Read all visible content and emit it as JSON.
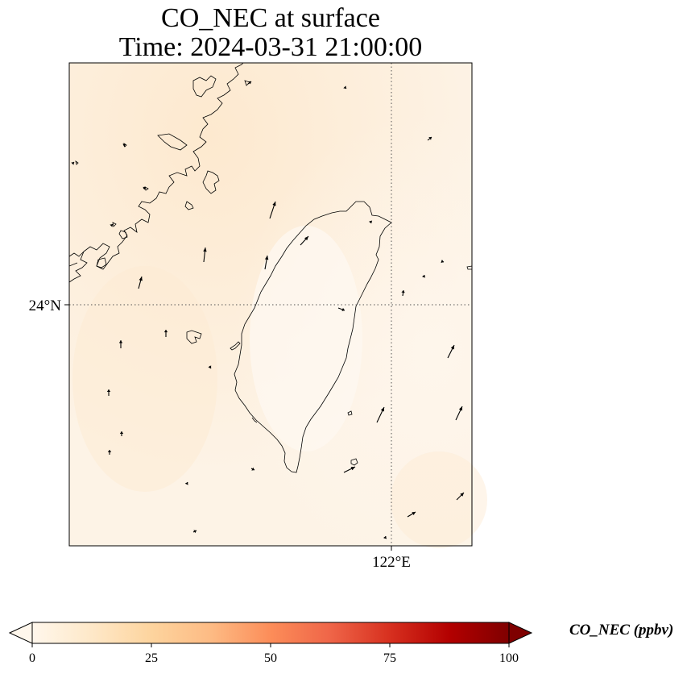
{
  "title": {
    "line1": "CO_NEC at surface",
    "line2": "Time: 2024-03-31 21:00:00"
  },
  "axes": {
    "lat_label": "24°N",
    "lon_label": "122°E",
    "gridlines": "dotted"
  },
  "colorbar": {
    "label": "CO_NEC (ppbv)",
    "ticks": [
      "0",
      "25",
      "50",
      "75",
      "100"
    ],
    "colormap": "OrRd",
    "colors": [
      "#fff7ec",
      "#fee8c8",
      "#fdd49e",
      "#fdbb84",
      "#fc8d59",
      "#ef6548",
      "#d7301f",
      "#b30000",
      "#7f0000"
    ],
    "extend": "both"
  },
  "field": {
    "background_color": "#fdf0df",
    "value_range_ppbv": [
      0,
      15
    ]
  },
  "vectors": {
    "color": "#000000",
    "count": 38
  }
}
